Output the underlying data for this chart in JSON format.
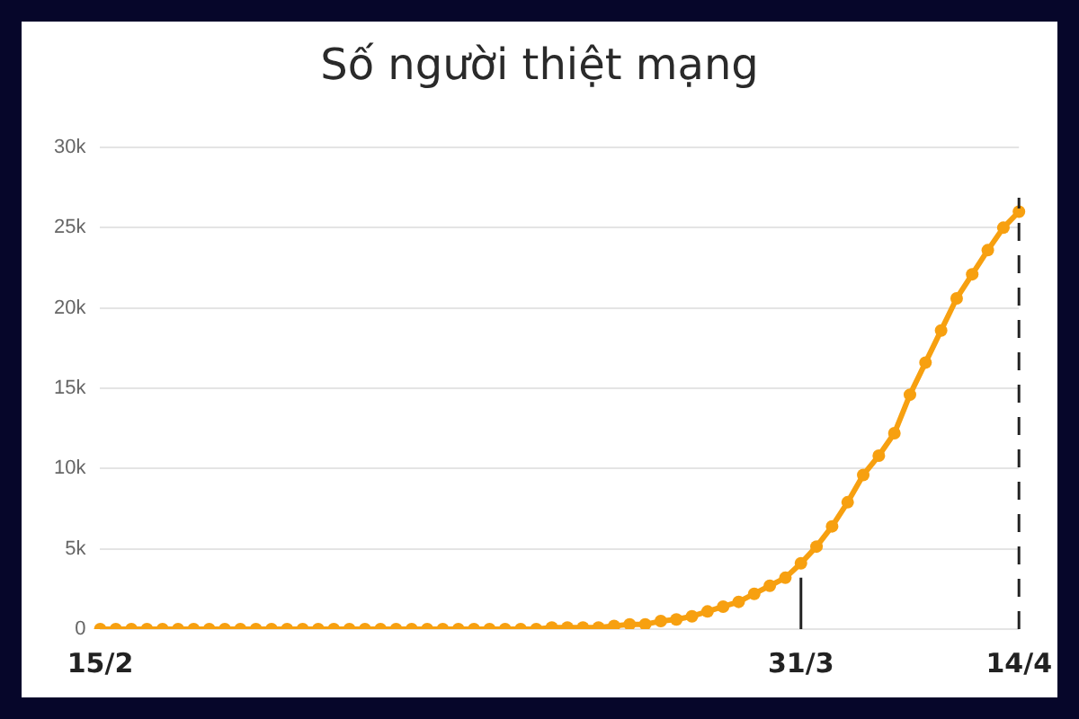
{
  "chart_data": {
    "type": "line",
    "title": "Số người thiệt mạng",
    "categories": [
      "15/2",
      null,
      null,
      null,
      null,
      null,
      null,
      null,
      null,
      null,
      null,
      null,
      null,
      null,
      null,
      null,
      null,
      null,
      null,
      null,
      null,
      null,
      null,
      null,
      null,
      null,
      null,
      null,
      null,
      null,
      null,
      null,
      null,
      null,
      null,
      null,
      null,
      null,
      null,
      null,
      null,
      null,
      null,
      null,
      null,
      "31/3",
      null,
      null,
      null,
      null,
      null,
      null,
      null,
      null,
      null,
      null,
      null,
      null,
      null,
      "14/4"
    ],
    "series": [
      {
        "color": "#f7a010",
        "values": [
          0,
          0,
          0,
          0,
          0,
          0,
          0,
          0,
          0,
          0,
          0,
          0,
          0,
          0,
          0,
          0,
          0,
          0,
          0,
          0,
          0,
          0,
          0,
          0,
          0,
          0,
          0,
          0,
          0,
          100,
          100,
          100,
          100,
          200,
          300,
          300,
          500,
          600,
          800,
          1100,
          1400,
          1700,
          2200,
          2700,
          3200,
          4100,
          5140,
          6400,
          7900,
          9600,
          10800,
          12200,
          14600,
          16600,
          18600,
          20600,
          22100,
          23600,
          25000,
          26000
        ]
      }
    ],
    "ylim": [
      0,
      30000
    ],
    "yticks": [
      0,
      {
        "value": 5000,
        "label": "5k"
      },
      {
        "value": 10000,
        "label": "10k"
      },
      {
        "value": 15000,
        "label": "15k"
      },
      {
        "value": 20000,
        "label": "20k"
      },
      {
        "value": 25000,
        "label": "25k"
      },
      {
        "value": 30000,
        "label": "30k"
      }
    ],
    "grid": "y",
    "marker": "circle",
    "line_style": "solid",
    "ref_lines": [
      {
        "axis": "x",
        "value": "31/3",
        "line_style": "solid",
        "color": "#222222"
      },
      {
        "axis": "x",
        "value": "14/4",
        "line_style": "dashed",
        "color": "#222222"
      }
    ]
  }
}
